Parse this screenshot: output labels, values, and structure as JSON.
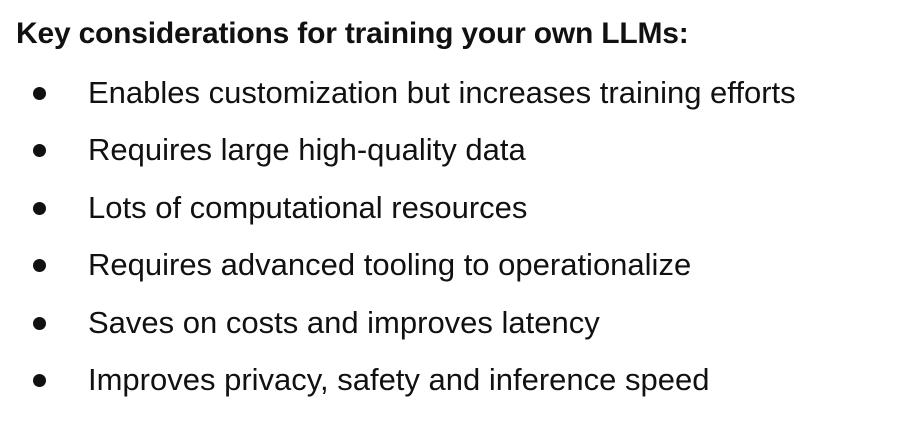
{
  "heading": "Key considerations for training your own LLMs:",
  "items": [
    {
      "text": "Enables customization but increases training efforts"
    },
    {
      "text": "Requires large high-quality data"
    },
    {
      "text": "Lots of computational resources"
    },
    {
      "text": "Requires advanced tooling to operationalize"
    },
    {
      "text": "Saves on costs and improves latency"
    },
    {
      "text": "Improves privacy, safety and inference speed"
    }
  ]
}
